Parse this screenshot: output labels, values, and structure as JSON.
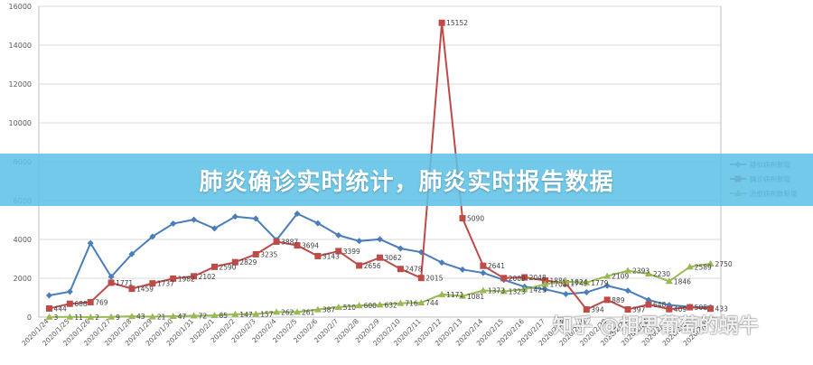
{
  "banner": {
    "title": "肺炎确诊实时统计，肺炎实时报告数据"
  },
  "watermark": {
    "text": "知乎 @相思葡萄的蜗牛"
  },
  "chart_data": {
    "type": "line",
    "ylim": [
      0,
      16000
    ],
    "yticks": [
      0,
      2000,
      4000,
      6000,
      8000,
      10000,
      12000,
      14000,
      16000
    ],
    "grid": true,
    "legend_position": "right",
    "categories": [
      "2020/1/24",
      "2020/1/25",
      "2020/1/26",
      "2020/1/27",
      "2020/1/28",
      "2020/1/29",
      "2020/1/30",
      "2020/1/31",
      "2020/2/1",
      "2020/2/2",
      "2020/2/3",
      "2020/2/4",
      "2020/2/5",
      "2020/2/6",
      "2020/2/7",
      "2020/2/8",
      "2020/2/9",
      "2020/2/10",
      "2020/2/11",
      "2020/2/12",
      "2020/2/13",
      "2020/2/14",
      "2020/2/15",
      "2020/2/16",
      "2020/2/17",
      "2020/2/18",
      "2020/2/19",
      "2020/2/20",
      "2020/2/21",
      "2020/2/22",
      "2020/2/23",
      "2020/2/24",
      "2020/2/25"
    ],
    "series": [
      {
        "name": "疑似病例新增",
        "color": "#4a7ebb",
        "marker": "diamond",
        "values": [
          1118,
          1309,
          3806,
          2077,
          3248,
          4148,
          4812,
          5019,
          4562,
          5173,
          5072,
          3971,
          5328,
          4833,
          4214,
          3916,
          4008,
          3536,
          3342,
          2807,
          2450,
          2277,
          1918,
          1563,
          1432,
          1185,
          1277,
          1614,
          1361,
          882,
          620,
          530,
          508
        ],
        "labels": [
          null,
          null,
          null,
          null,
          null,
          null,
          null,
          null,
          null,
          null,
          null,
          null,
          null,
          null,
          null,
          null,
          null,
          null,
          null,
          null,
          null,
          null,
          null,
          null,
          null,
          null,
          null,
          null,
          null,
          null,
          null,
          null,
          null
        ]
      },
      {
        "name": "确诊病例新增",
        "color": "#be4b48",
        "marker": "square",
        "values": [
          444,
          688,
          769,
          1771,
          1459,
          1737,
          1982,
          2102,
          2590,
          2829,
          3235,
          3887,
          3694,
          3143,
          3399,
          2656,
          3062,
          2478,
          2015,
          15152,
          5090,
          2641,
          2009,
          2048,
          1886,
          1749,
          394,
          889,
          397,
          648,
          409,
          508,
          433
        ],
        "labels": [
          "444",
          "688",
          "769",
          "1771",
          "1459",
          "1737",
          "1982",
          "2102",
          "2590",
          "2829",
          "3235",
          "3887",
          "3694",
          "3143",
          "3399",
          "2656",
          "3062",
          "2478",
          "2015",
          "15152",
          "5090",
          "2641",
          "2009",
          "2048",
          "1886",
          "1749",
          "394",
          "889",
          "397",
          "648",
          "409",
          "508",
          "433"
        ]
      },
      {
        "name": "治愈病例数新增",
        "color": "#98b954",
        "marker": "triangle",
        "values": [
          3,
          11,
          2,
          9,
          43,
          21,
          47,
          72,
          85,
          147,
          157,
          262,
          261,
          387,
          510,
          600,
          632,
          716,
          744,
          1171,
          1081,
          1373,
          1323,
          1425,
          1701,
          1824,
          1779,
          2109,
          2393,
          2230,
          1846,
          2589,
          2750
        ],
        "labels": [
          "3",
          "11",
          "2",
          "9",
          "43",
          "21",
          "47",
          "72",
          "85",
          "147",
          "157",
          "262",
          "261",
          "387",
          "510",
          "600",
          "632",
          "716",
          "744",
          "1171",
          "1081",
          "1373",
          "1323",
          "1425",
          "1701",
          "1824",
          "1779",
          "2109",
          "2393",
          "2230",
          "1846",
          "2589",
          "2750"
        ]
      }
    ]
  }
}
